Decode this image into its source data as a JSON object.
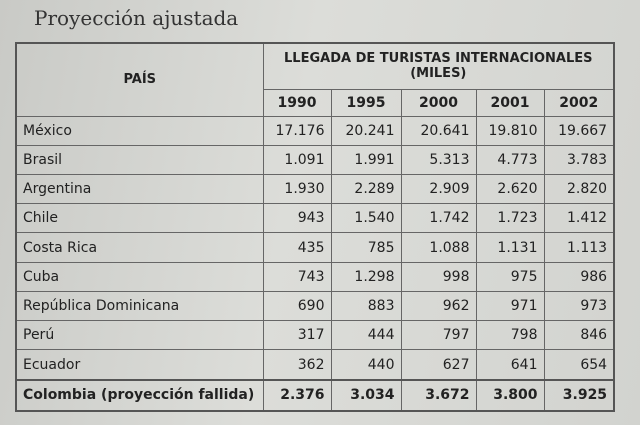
{
  "title": "Proyección ajustada",
  "table": {
    "country_header": "PAÍS",
    "group_header": "LLEGADA DE TURISTAS INTERNACIONALES (MILES)",
    "years": [
      "1990",
      "1995",
      "2000",
      "2001",
      "2002"
    ],
    "rows": [
      [
        "México",
        "17.176",
        "20.241",
        "20.641",
        "19.810",
        "19.667"
      ],
      [
        "Brasil",
        "1.091",
        "1.991",
        "5.313",
        "4.773",
        "3.783"
      ],
      [
        "Argentina",
        "1.930",
        "2.289",
        "2.909",
        "2.620",
        "2.820"
      ],
      [
        "Chile",
        "943",
        "1.540",
        "1.742",
        "1.723",
        "1.412"
      ],
      [
        "Costa Rica",
        "435",
        "785",
        "1.088",
        "1.131",
        "1.113"
      ],
      [
        "Cuba",
        "743",
        "1.298",
        "998",
        "975",
        "986"
      ],
      [
        "República Dominicana",
        "690",
        "883",
        "962",
        "971",
        "973"
      ],
      [
        "Perú",
        "317",
        "444",
        "797",
        "798",
        "846"
      ],
      [
        "Ecuador",
        "362",
        "440",
        "627",
        "641",
        "654"
      ],
      [
        "Colombia (proyección fallida)",
        "2.376",
        "3.034",
        "3.672",
        "3.800",
        "3.925"
      ]
    ]
  }
}
